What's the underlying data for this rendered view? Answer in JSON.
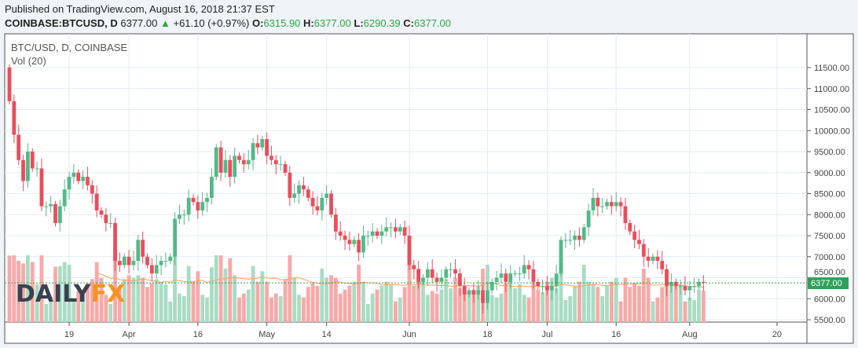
{
  "header": {
    "published": "Published on TradingView.com, August 16, 2018 21:37 EST",
    "symbol": "COINBASE:BTCUSD, D",
    "last": "6377.00",
    "change": "+61.10 (+0.97%)",
    "o_label": "O:",
    "o": "6315.90",
    "h_label": "H:",
    "h": "6377.00",
    "l_label": "L:",
    "l": "6290.39",
    "c_label": "C:",
    "c": "6377.00"
  },
  "chart_data": {
    "type": "candlestick",
    "title": "BTC/USD, D, COINBASE",
    "volume_label": "Vol (20)",
    "logo": "DAILYFX",
    "ylim": [
      5500,
      11750
    ],
    "yticks": [
      5500,
      6000,
      6500,
      7000,
      7500,
      8000,
      8500,
      9000,
      9500,
      10000,
      10500,
      11000,
      11500
    ],
    "ytick_labels": [
      "5500.00",
      "6000.00",
      "6500.00",
      "7000.00",
      "7500.00",
      "8000.00",
      "8500.00",
      "9000.00",
      "9500.00",
      "10000.00",
      "10500.00",
      "11000.00",
      "11500.00"
    ],
    "xticks": [
      {
        "day": 13,
        "label": "19"
      },
      {
        "day": 26,
        "label": "Apr"
      },
      {
        "day": 41,
        "label": "16"
      },
      {
        "day": 56,
        "label": "May"
      },
      {
        "day": 69,
        "label": "14"
      },
      {
        "day": 87,
        "label": "Jun"
      },
      {
        "day": 104,
        "label": "18"
      },
      {
        "day": 117,
        "label": "Jul"
      },
      {
        "day": 132,
        "label": "16"
      },
      {
        "day": 148,
        "label": "Aug"
      },
      {
        "day": 167,
        "label": "20"
      }
    ],
    "last_price": 6377,
    "last_price_label": "6377.00",
    "open_first": 11500,
    "closes": [
      10700,
      9900,
      9300,
      8800,
      9500,
      9100,
      9100,
      8200,
      8200,
      8250,
      7800,
      8200,
      8600,
      8900,
      9000,
      8800,
      8900,
      8700,
      8500,
      8100,
      8000,
      7800,
      7800,
      6900,
      6800,
      7000,
      6800,
      6900,
      7400,
      7000,
      6800,
      6600,
      6800,
      6900,
      6900,
      7000,
      7900,
      8000,
      8000,
      8400,
      8300,
      8100,
      8300,
      8400,
      8900,
      9600,
      9000,
      9300,
      8900,
      9400,
      9300,
      9200,
      9300,
      9700,
      9600,
      9800,
      9400,
      9300,
      9200,
      9200,
      9000,
      8400,
      8500,
      8700,
      8600,
      8400,
      8200,
      8100,
      8400,
      8500,
      8000,
      7600,
      7500,
      7400,
      7300,
      7400,
      7100,
      7500,
      7500,
      7600,
      7500,
      7600,
      7700,
      7700,
      7600,
      7700,
      7500,
      6800,
      6700,
      6400,
      6500,
      6700,
      6500,
      6400,
      6500,
      6700,
      6700,
      6600,
      6300,
      6100,
      6200,
      6100,
      6200,
      5900,
      6200,
      6400,
      6500,
      6600,
      6400,
      6600,
      6600,
      6600,
      6800,
      6700,
      6400,
      6300,
      6300,
      6200,
      6300,
      6600,
      7400,
      7400,
      7400,
      7500,
      7400,
      7700,
      8100,
      8400,
      8200,
      8200,
      8300,
      8200,
      8300,
      8200,
      7800,
      7600,
      7400,
      7300,
      7000,
      6900,
      7000,
      6900,
      6700,
      6300,
      6400,
      6300,
      6300,
      6200,
      6300,
      6300,
      6400,
      6377
    ]
  },
  "colors": {
    "up": "#53b987",
    "down": "#eb4d5c",
    "up_vol": "#a9dcc3",
    "down_vol": "#f7a9a7",
    "ma": "#f7a15c",
    "grid": "#e1ecf2",
    "last_line": "#2ea05a",
    "logo_dark": "#3a4150",
    "logo_orange": "#f7931e"
  }
}
